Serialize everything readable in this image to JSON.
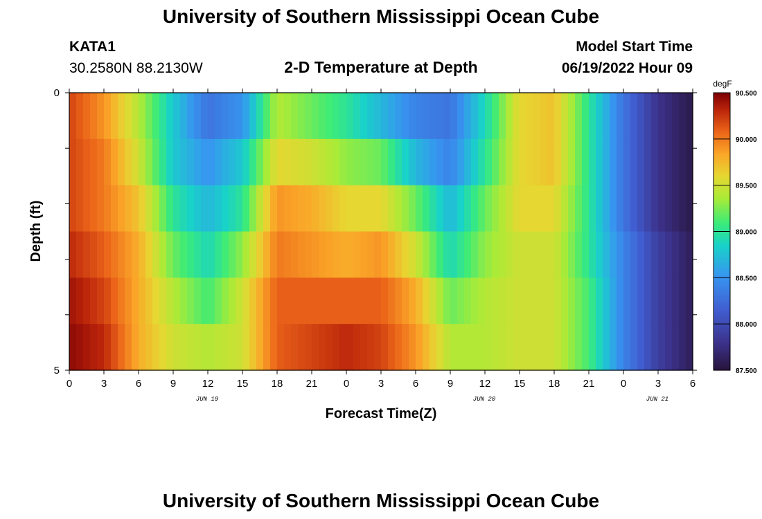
{
  "page": {
    "title_top": "University of Southern Mississippi Ocean Cube",
    "title_bottom": "University of Southern Mississippi Ocean Cube",
    "station_id": "KATA1",
    "station_coords": "30.2580N  88.2130W",
    "plot_subtitle": "2-D Temperature at Depth",
    "model_start_label": "Model Start Time",
    "model_start_value": "06/19/2022 Hour 09"
  },
  "chart_data": {
    "type": "heatmap",
    "title": "2-D Temperature at Depth",
    "xlabel": "Forecast Time(Z)",
    "ylabel": "Depth (ft)",
    "y_tick_labels": [
      "0",
      "5"
    ],
    "y_range": [
      0,
      5
    ],
    "x_tick_labels": [
      "0",
      "3",
      "6",
      "9",
      "12",
      "15",
      "18",
      "21",
      "0",
      "3",
      "6",
      "9",
      "12",
      "15",
      "18",
      "21",
      "0",
      "3",
      "6"
    ],
    "date_labels": [
      "JUN 19",
      "JUN 20",
      "JUN 21"
    ],
    "colorbar": {
      "unit": "degF",
      "min": 87.5,
      "max": 90.5,
      "tick_labels": [
        "90.500",
        "90.000",
        "89.500",
        "89.000",
        "88.500",
        "88.000",
        "87.500"
      ]
    },
    "x_hours": [
      0,
      3,
      6,
      9,
      12,
      15,
      18,
      21,
      24,
      27,
      30,
      33,
      36,
      39,
      42,
      45,
      48,
      51,
      54
    ],
    "depth_layers": [
      {
        "depth_ft": 0.5,
        "values": [
          90.2,
          89.9,
          89.4,
          88.8,
          88.3,
          88.5,
          89.4,
          89.2,
          89.0,
          88.7,
          88.4,
          88.3,
          88.9,
          89.6,
          89.7,
          89.0,
          88.3,
          87.8,
          87.55
        ]
      },
      {
        "depth_ft": 1.5,
        "values": [
          90.2,
          90.0,
          89.5,
          88.8,
          88.5,
          88.8,
          89.6,
          89.5,
          89.3,
          89.2,
          88.7,
          88.4,
          89.0,
          89.6,
          89.7,
          89.0,
          88.3,
          87.8,
          87.55
        ]
      },
      {
        "depth_ft": 2.5,
        "values": [
          90.2,
          90.0,
          89.7,
          89.0,
          88.7,
          89.0,
          89.9,
          89.8,
          89.6,
          89.6,
          89.2,
          88.7,
          89.2,
          89.6,
          89.6,
          89.0,
          88.3,
          87.8,
          87.55
        ]
      },
      {
        "depth_ft": 3.5,
        "values": [
          90.3,
          90.1,
          89.8,
          89.2,
          88.9,
          89.3,
          90.0,
          89.9,
          89.8,
          89.9,
          89.5,
          88.9,
          89.3,
          89.5,
          89.5,
          89.0,
          88.4,
          87.9,
          87.6
        ]
      },
      {
        "depth_ft": 4.5,
        "values": [
          90.4,
          90.2,
          89.8,
          89.4,
          89.1,
          89.5,
          90.1,
          90.1,
          90.1,
          90.1,
          89.8,
          89.2,
          89.4,
          89.5,
          89.5,
          89.1,
          88.4,
          87.9,
          87.6
        ]
      },
      {
        "depth_ft": 5.0,
        "values": [
          90.45,
          90.3,
          89.8,
          89.5,
          89.4,
          89.5,
          90.1,
          90.2,
          90.3,
          90.2,
          89.9,
          89.4,
          89.4,
          89.5,
          89.5,
          89.1,
          88.4,
          87.9,
          87.6
        ]
      }
    ]
  }
}
